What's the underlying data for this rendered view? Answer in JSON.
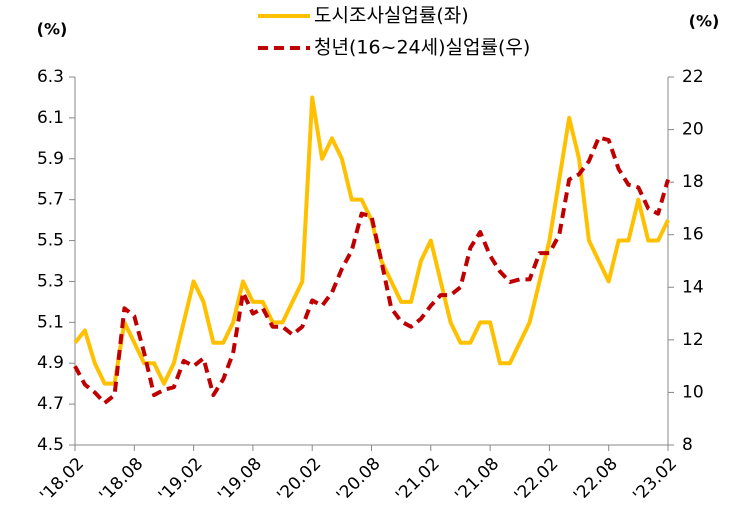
{
  "chart_data": {
    "type": "line",
    "y_label": "(%)",
    "y2_label": "(%)",
    "categories": [
      "'18.02",
      null,
      null,
      null,
      null,
      null,
      "'18.08",
      null,
      null,
      null,
      null,
      null,
      "'19.02",
      null,
      null,
      null,
      null,
      null,
      "'19.08",
      null,
      null,
      null,
      null,
      null,
      "'20.02",
      null,
      null,
      null,
      null,
      null,
      "'20.08",
      null,
      null,
      null,
      null,
      null,
      "'21.02",
      null,
      null,
      null,
      null,
      null,
      "'21.08",
      null,
      null,
      null,
      null,
      null,
      "'22.02",
      null,
      null,
      null,
      null,
      null,
      "'22.08",
      null,
      null,
      null,
      null,
      null,
      "'23.02"
    ],
    "series": [
      {
        "name": "도시조사실업률(좌)",
        "color": "#FFC000",
        "dashed": false,
        "values": [
          5.0,
          5.06,
          4.9,
          4.8,
          4.8,
          5.1,
          5.0,
          4.9,
          4.9,
          4.8,
          4.9,
          5.1,
          5.3,
          5.2,
          5.0,
          5.0,
          5.1,
          5.3,
          5.2,
          5.2,
          5.1,
          5.1,
          5.2,
          5.3,
          6.2,
          5.9,
          6.0,
          5.9,
          5.7,
          5.7,
          5.6,
          5.4,
          5.3,
          5.2,
          5.2,
          5.4,
          5.5,
          5.3,
          5.1,
          5.0,
          5.0,
          5.1,
          5.1,
          4.9,
          4.9,
          5.0,
          5.1,
          5.3,
          5.5,
          5.8,
          6.1,
          5.9,
          5.5,
          5.4,
          5.3,
          5.5,
          5.5,
          5.7,
          5.5,
          5.5,
          5.6
        ]
      },
      {
        "name": "청년(16~24세)실업률(우)",
        "color": "#C00000",
        "dashed": true,
        "axis": "y2",
        "values": [
          11.0,
          10.3,
          10.0,
          9.6,
          9.9,
          13.2,
          12.9,
          11.5,
          9.9,
          10.1,
          10.2,
          11.2,
          11.0,
          11.3,
          9.9,
          10.5,
          11.5,
          13.8,
          13.0,
          13.2,
          12.5,
          12.5,
          12.2,
          12.5,
          13.5,
          13.3,
          13.8,
          14.7,
          15.4,
          16.8,
          16.7,
          15.0,
          13.2,
          12.7,
          12.5,
          12.8,
          13.3,
          13.7,
          13.7,
          14.0,
          15.5,
          16.1,
          15.2,
          14.6,
          14.2,
          14.3,
          14.3,
          15.3,
          15.3,
          16.0,
          18.1,
          18.3,
          18.8,
          19.7,
          19.6,
          18.5,
          17.9,
          17.8,
          17.0,
          16.8,
          18.1
        ]
      }
    ],
    "ylim": [
      4.5,
      6.3
    ],
    "yticks": [
      4.5,
      4.7,
      4.9,
      5.1,
      5.3,
      5.5,
      5.7,
      5.9,
      6.1,
      6.3
    ],
    "y2lim": [
      8,
      22
    ],
    "y2ticks": [
      8,
      10,
      12,
      14,
      16,
      18,
      20,
      22
    ],
    "grid": false,
    "legend": "top"
  }
}
